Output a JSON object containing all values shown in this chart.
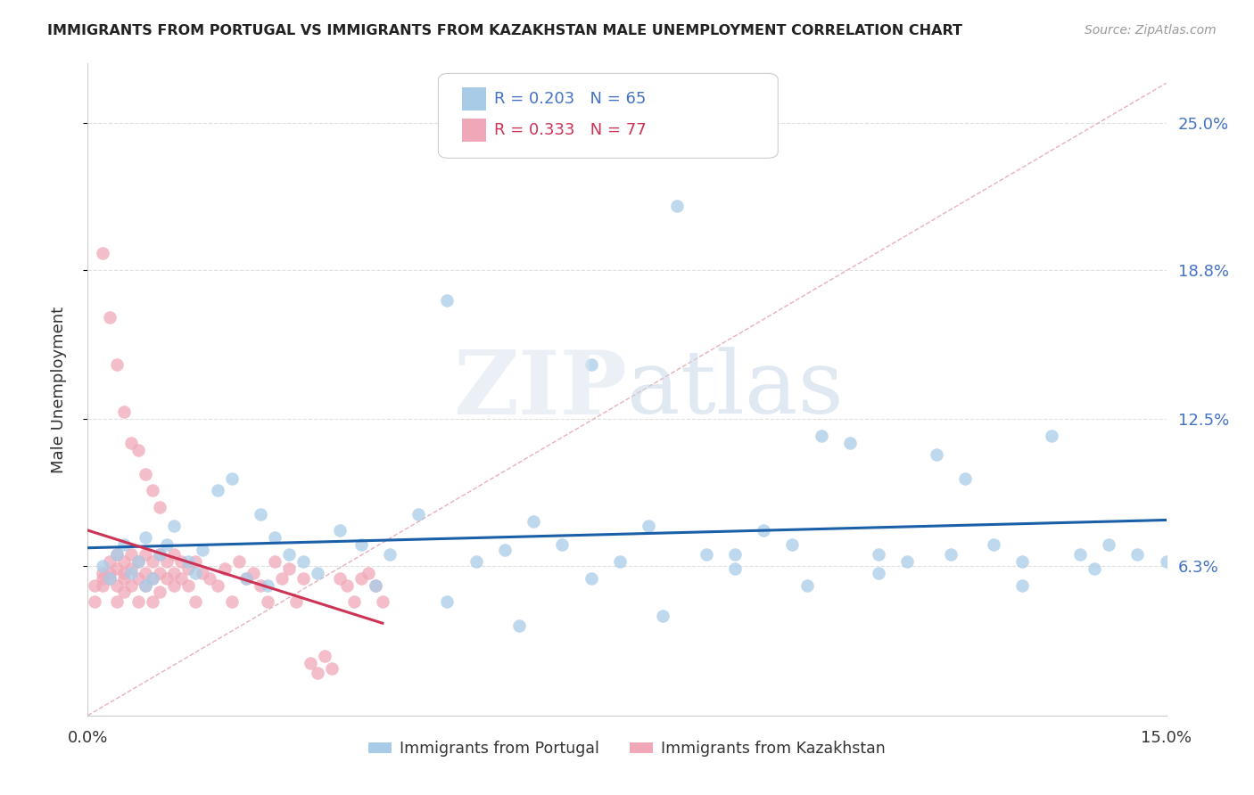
{
  "title": "IMMIGRANTS FROM PORTUGAL VS IMMIGRANTS FROM KAZAKHSTAN MALE UNEMPLOYMENT CORRELATION CHART",
  "source": "Source: ZipAtlas.com",
  "ylabel": "Male Unemployment",
  "ytick_labels": [
    "6.3%",
    "12.5%",
    "18.8%",
    "25.0%"
  ],
  "ytick_values": [
    0.063,
    0.125,
    0.188,
    0.25
  ],
  "xmin": 0.0,
  "xmax": 0.15,
  "ymin": 0.0,
  "ymax": 0.275,
  "legend_blue_r": "0.203",
  "legend_blue_n": "65",
  "legend_pink_r": "0.333",
  "legend_pink_n": "77",
  "legend_blue_label": "Immigrants from Portugal",
  "legend_pink_label": "Immigrants from Kazakhstan",
  "blue_color": "#a8cce8",
  "pink_color": "#f0a8b8",
  "blue_line_color": "#1a5fa8",
  "pink_line_color": "#cc3355",
  "diag_line_color": "#e8b0bc",
  "watermark_zip": "ZIP",
  "watermark_atlas": "atlas",
  "grid_color": "#e0e0e0",
  "axis_color": "#cccccc",
  "blue_x": [
    0.002,
    0.003,
    0.004,
    0.005,
    0.006,
    0.007,
    0.008,
    0.009,
    0.01,
    0.011,
    0.012,
    0.014,
    0.016,
    0.018,
    0.02,
    0.022,
    0.024,
    0.026,
    0.028,
    0.03,
    0.032,
    0.035,
    0.038,
    0.042,
    0.046,
    0.05,
    0.054,
    0.058,
    0.062,
    0.066,
    0.07,
    0.074,
    0.078,
    0.082,
    0.086,
    0.09,
    0.094,
    0.098,
    0.102,
    0.106,
    0.11,
    0.114,
    0.118,
    0.122,
    0.126,
    0.13,
    0.134,
    0.138,
    0.142,
    0.146,
    0.15,
    0.008,
    0.015,
    0.025,
    0.04,
    0.06,
    0.08,
    0.1,
    0.12,
    0.14,
    0.05,
    0.07,
    0.09,
    0.11,
    0.13
  ],
  "blue_y": [
    0.063,
    0.058,
    0.068,
    0.072,
    0.06,
    0.065,
    0.075,
    0.058,
    0.068,
    0.072,
    0.08,
    0.065,
    0.07,
    0.095,
    0.1,
    0.058,
    0.085,
    0.075,
    0.068,
    0.065,
    0.06,
    0.078,
    0.072,
    0.068,
    0.085,
    0.175,
    0.065,
    0.07,
    0.082,
    0.072,
    0.148,
    0.065,
    0.08,
    0.215,
    0.068,
    0.062,
    0.078,
    0.072,
    0.118,
    0.115,
    0.068,
    0.065,
    0.11,
    0.1,
    0.072,
    0.065,
    0.118,
    0.068,
    0.072,
    0.068,
    0.065,
    0.055,
    0.06,
    0.055,
    0.055,
    0.038,
    0.042,
    0.055,
    0.068,
    0.062,
    0.048,
    0.058,
    0.068,
    0.06,
    0.055
  ],
  "pink_x": [
    0.001,
    0.001,
    0.002,
    0.002,
    0.002,
    0.003,
    0.003,
    0.003,
    0.004,
    0.004,
    0.004,
    0.004,
    0.005,
    0.005,
    0.005,
    0.005,
    0.006,
    0.006,
    0.006,
    0.007,
    0.007,
    0.007,
    0.008,
    0.008,
    0.008,
    0.009,
    0.009,
    0.009,
    0.01,
    0.01,
    0.01,
    0.011,
    0.011,
    0.012,
    0.012,
    0.012,
    0.013,
    0.013,
    0.014,
    0.014,
    0.015,
    0.015,
    0.016,
    0.017,
    0.018,
    0.019,
    0.02,
    0.021,
    0.022,
    0.023,
    0.024,
    0.025,
    0.026,
    0.027,
    0.028,
    0.029,
    0.03,
    0.031,
    0.032,
    0.033,
    0.034,
    0.035,
    0.036,
    0.037,
    0.038,
    0.039,
    0.04,
    0.041,
    0.002,
    0.003,
    0.004,
    0.005,
    0.006,
    0.007,
    0.008,
    0.009,
    0.01
  ],
  "pink_y": [
    0.055,
    0.048,
    0.06,
    0.055,
    0.058,
    0.065,
    0.058,
    0.06,
    0.068,
    0.055,
    0.048,
    0.062,
    0.058,
    0.052,
    0.065,
    0.06,
    0.068,
    0.055,
    0.062,
    0.058,
    0.048,
    0.065,
    0.055,
    0.06,
    0.068,
    0.048,
    0.058,
    0.065,
    0.06,
    0.052,
    0.068,
    0.058,
    0.065,
    0.055,
    0.06,
    0.068,
    0.058,
    0.065,
    0.055,
    0.062,
    0.048,
    0.065,
    0.06,
    0.058,
    0.055,
    0.062,
    0.048,
    0.065,
    0.058,
    0.06,
    0.055,
    0.048,
    0.065,
    0.058,
    0.062,
    0.048,
    0.058,
    0.022,
    0.018,
    0.025,
    0.02,
    0.058,
    0.055,
    0.048,
    0.058,
    0.06,
    0.055,
    0.048,
    0.195,
    0.168,
    0.148,
    0.128,
    0.115,
    0.112,
    0.102,
    0.095,
    0.088
  ]
}
